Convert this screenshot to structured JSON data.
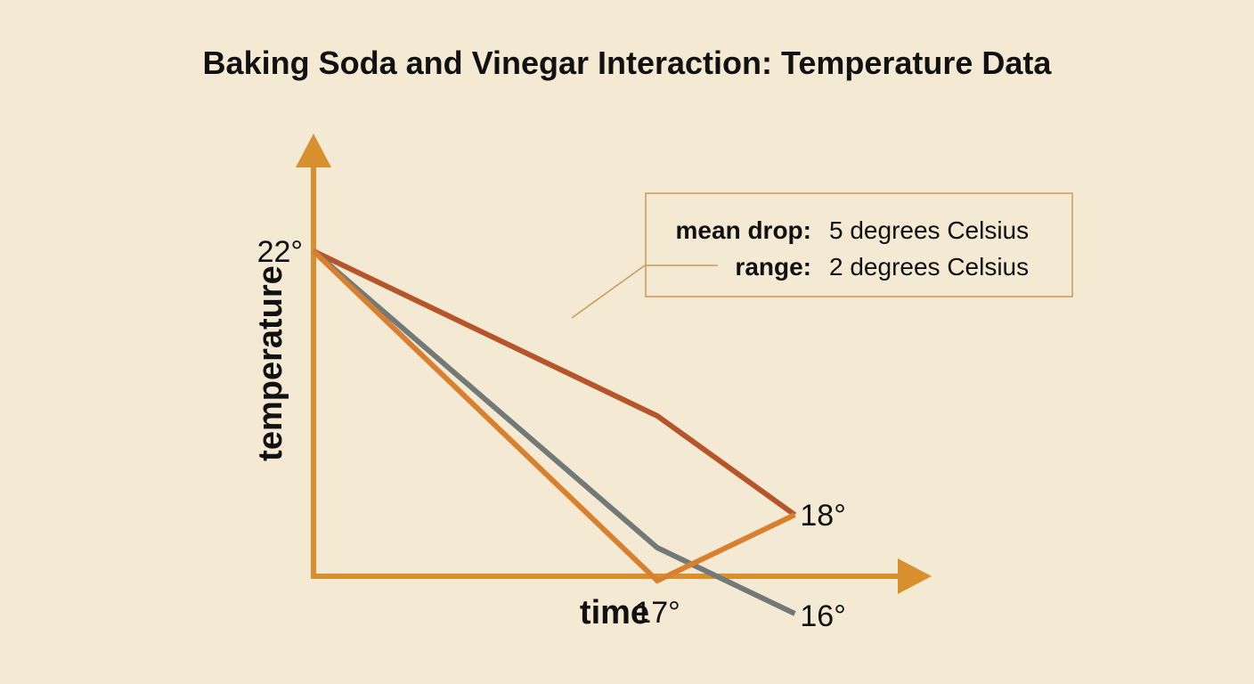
{
  "chart_data": {
    "type": "line",
    "title": "Baking Soda and Vinegar Interaction: Temperature Data",
    "xlabel": "time",
    "ylabel": "temperature",
    "ylim": [
      15.5,
      24.5
    ],
    "grid": false,
    "series": [
      {
        "color": "#b5552a",
        "points": [
          [
            0,
            22
          ],
          [
            1,
            19.5
          ],
          [
            1.4,
            18
          ]
        ]
      },
      {
        "color": "#727a78",
        "points": [
          [
            0,
            22
          ],
          [
            1,
            17.5
          ],
          [
            1.4,
            16.5
          ]
        ]
      },
      {
        "color": "#d8802f",
        "points": [
          [
            0,
            22
          ],
          [
            1,
            17
          ],
          [
            1.4,
            18
          ]
        ]
      }
    ],
    "point_labels": [
      {
        "text": "22°",
        "x": 0,
        "y": 22
      },
      {
        "text": "18°",
        "x": 1.4,
        "y": 18
      },
      {
        "text": "16°",
        "x": 1.4,
        "y": 16.5
      },
      {
        "text": "17°",
        "x": 1,
        "y": 17
      }
    ],
    "annotation": {
      "mean_key": "mean drop:",
      "mean_value": "5 degrees Celsius",
      "range_key": "range:",
      "range_value": "2 degrees Celsius"
    },
    "colors": {
      "axis": "#d8902e",
      "annotation_border": "#c89a5a"
    }
  }
}
